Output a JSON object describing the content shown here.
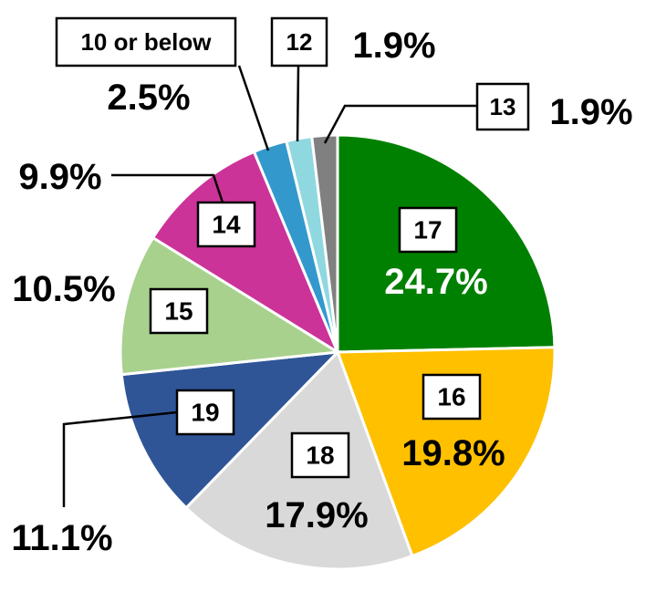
{
  "chart_data": {
    "type": "pie",
    "start_angle_deg": 0,
    "direction": "clockwise",
    "slices": [
      {
        "label": "17",
        "value": 24.7,
        "value_label": "24.7%",
        "color": "#008000",
        "pct_color": "#ffffff"
      },
      {
        "label": "16",
        "value": 19.8,
        "value_label": "19.8%",
        "color": "#ffc000",
        "pct_color": "#000000"
      },
      {
        "label": "18",
        "value": 17.9,
        "value_label": "17.9%",
        "color": "#d9d9d9",
        "pct_color": "#000000"
      },
      {
        "label": "19",
        "value": 11.1,
        "value_label": "11.1%",
        "color": "#2f5597",
        "pct_color": "#000000"
      },
      {
        "label": "15",
        "value": 10.5,
        "value_label": "10.5%",
        "color": "#a9d18e",
        "pct_color": "#000000"
      },
      {
        "label": "14",
        "value": 9.9,
        "value_label": "9.9%",
        "color": "#cc3399",
        "pct_color": "#000000"
      },
      {
        "label": "10 or below",
        "value": 2.5,
        "value_label": "2.5%",
        "color": "#3399cc",
        "pct_color": "#000000"
      },
      {
        "label": "12",
        "value": 1.9,
        "value_label": "1.9%",
        "color": "#8fd8e0",
        "pct_color": "#000000"
      },
      {
        "label": "13",
        "value": 1.9,
        "value_label": "1.9%",
        "color": "#808080",
        "pct_color": "#000000"
      }
    ]
  }
}
